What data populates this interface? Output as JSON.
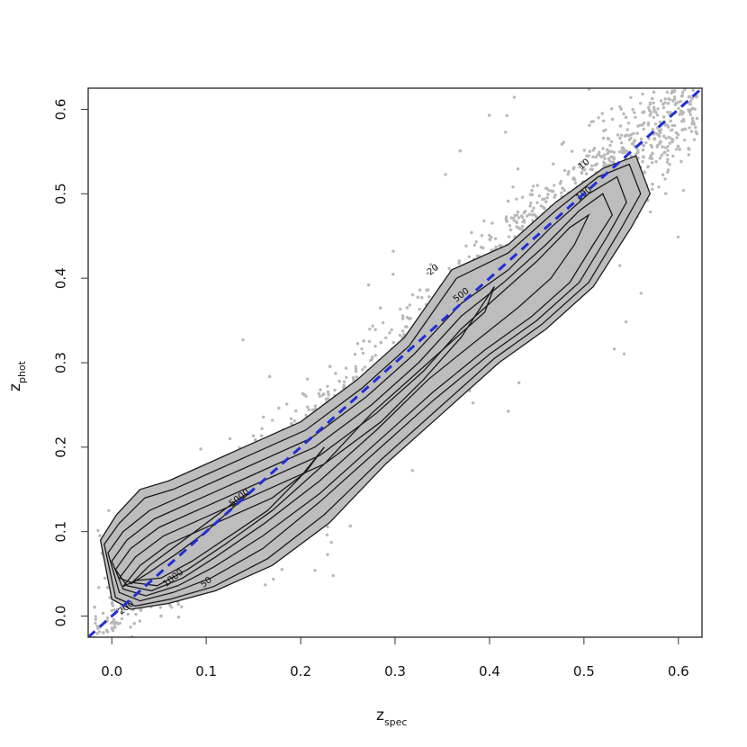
{
  "chart_data": {
    "type": "scatter",
    "title": "",
    "xlabel": {
      "main": "z",
      "sub": "spec"
    },
    "ylabel": {
      "main": "z",
      "sub": "phot"
    },
    "xlim": [
      -0.025,
      0.625
    ],
    "ylim": [
      -0.025,
      0.625
    ],
    "x_ticks": [
      "0.0",
      "0.1",
      "0.2",
      "0.3",
      "0.4",
      "0.5",
      "0.6"
    ],
    "y_ticks": [
      "0.0",
      "0.1",
      "0.2",
      "0.3",
      "0.4",
      "0.5",
      "0.6"
    ],
    "grid": false,
    "legend": "none",
    "reference_line": {
      "label": "",
      "slope": 1,
      "intercept": 0,
      "style": "dashed",
      "color": "#1f2fd6"
    },
    "colors": {
      "points": "#b9b9b9",
      "density_fill": "#bdbdbd",
      "contour": "#1a1a1a",
      "reference": "#1f2fd6"
    },
    "density_contours": [
      {
        "level": "10",
        "x": [
          -0.012,
          0.005,
          0.03,
          0.06,
          0.1,
          0.14,
          0.2,
          0.26,
          0.31,
          0.36,
          0.42,
          0.47,
          0.52,
          0.555,
          0.57,
          0.55,
          0.51,
          0.46,
          0.41,
          0.35,
          0.29,
          0.23,
          0.17,
          0.11,
          0.06,
          0.02,
          0.0,
          -0.012
        ],
        "y": [
          0.09,
          0.12,
          0.15,
          0.16,
          0.18,
          0.2,
          0.23,
          0.28,
          0.33,
          0.41,
          0.44,
          0.49,
          0.53,
          0.545,
          0.5,
          0.46,
          0.39,
          0.34,
          0.3,
          0.24,
          0.18,
          0.11,
          0.06,
          0.03,
          0.015,
          0.008,
          0.02,
          0.09
        ]
      },
      {
        "level": "20",
        "x": [
          -0.008,
          0.008,
          0.035,
          0.065,
          0.105,
          0.145,
          0.205,
          0.265,
          0.315,
          0.365,
          0.42,
          0.47,
          0.515,
          0.548,
          0.56,
          0.54,
          0.505,
          0.455,
          0.405,
          0.345,
          0.285,
          0.225,
          0.165,
          0.108,
          0.062,
          0.025,
          0.004,
          -0.008
        ],
        "y": [
          0.085,
          0.11,
          0.14,
          0.15,
          0.17,
          0.19,
          0.22,
          0.27,
          0.32,
          0.4,
          0.43,
          0.48,
          0.52,
          0.535,
          0.5,
          0.46,
          0.395,
          0.345,
          0.305,
          0.245,
          0.185,
          0.12,
          0.068,
          0.035,
          0.02,
          0.012,
          0.022,
          0.085
        ]
      },
      {
        "level": "50",
        "x": [
          -0.004,
          0.012,
          0.04,
          0.07,
          0.11,
          0.15,
          0.21,
          0.27,
          0.32,
          0.37,
          0.42,
          0.465,
          0.505,
          0.535,
          0.545,
          0.525,
          0.495,
          0.45,
          0.4,
          0.34,
          0.28,
          0.22,
          0.16,
          0.105,
          0.065,
          0.03,
          0.008,
          -0.004
        ],
        "y": [
          0.075,
          0.1,
          0.125,
          0.14,
          0.16,
          0.18,
          0.21,
          0.26,
          0.31,
          0.37,
          0.41,
          0.46,
          0.5,
          0.52,
          0.49,
          0.45,
          0.395,
          0.35,
          0.31,
          0.255,
          0.195,
          0.135,
          0.08,
          0.045,
          0.028,
          0.018,
          0.028,
          0.075
        ]
      },
      {
        "level": "100",
        "x": [
          0.0,
          0.016,
          0.045,
          0.075,
          0.115,
          0.155,
          0.215,
          0.275,
          0.325,
          0.37,
          0.415,
          0.46,
          0.495,
          0.52,
          0.53,
          0.51,
          0.485,
          0.445,
          0.395,
          0.34,
          0.28,
          0.22,
          0.16,
          0.108,
          0.07,
          0.036,
          0.012,
          0.0
        ],
        "y": [
          0.065,
          0.09,
          0.115,
          0.13,
          0.15,
          0.17,
          0.2,
          0.25,
          0.3,
          0.355,
          0.395,
          0.44,
          0.48,
          0.5,
          0.475,
          0.44,
          0.395,
          0.355,
          0.315,
          0.265,
          0.205,
          0.145,
          0.095,
          0.058,
          0.036,
          0.024,
          0.032,
          0.065
        ]
      },
      {
        "level": "200",
        "x": [
          0.004,
          0.02,
          0.05,
          0.08,
          0.12,
          0.16,
          0.22,
          0.28,
          0.33,
          0.37,
          0.41,
          0.45,
          0.485,
          0.505,
          0.49,
          0.465,
          0.43,
          0.385,
          0.335,
          0.28,
          0.22,
          0.162,
          0.11,
          0.075,
          0.042,
          0.016,
          0.004
        ],
        "y": [
          0.055,
          0.08,
          0.105,
          0.12,
          0.14,
          0.16,
          0.19,
          0.24,
          0.29,
          0.34,
          0.38,
          0.42,
          0.46,
          0.475,
          0.44,
          0.4,
          0.365,
          0.325,
          0.28,
          0.22,
          0.16,
          0.11,
          0.07,
          0.045,
          0.03,
          0.036,
          0.055
        ]
      },
      {
        "level": "500",
        "x": [
          0.008,
          0.025,
          0.055,
          0.085,
          0.125,
          0.165,
          0.225,
          0.285,
          0.33,
          0.37,
          0.405,
          0.395,
          0.36,
          0.32,
          0.275,
          0.225,
          0.17,
          0.12,
          0.08,
          0.048,
          0.02,
          0.008
        ],
        "y": [
          0.045,
          0.07,
          0.095,
          0.11,
          0.13,
          0.15,
          0.18,
          0.23,
          0.28,
          0.33,
          0.39,
          0.36,
          0.325,
          0.285,
          0.24,
          0.18,
          0.125,
          0.085,
          0.055,
          0.036,
          0.04,
          0.045
        ]
      },
      {
        "level": "1000",
        "x": [
          0.012,
          0.03,
          0.06,
          0.09,
          0.13,
          0.17,
          0.205,
          0.225,
          0.2,
          0.165,
          0.125,
          0.085,
          0.052,
          0.025,
          0.012
        ],
        "y": [
          0.035,
          0.06,
          0.085,
          0.1,
          0.12,
          0.14,
          0.17,
          0.2,
          0.165,
          0.125,
          0.095,
          0.065,
          0.045,
          0.042,
          0.035
        ]
      },
      {
        "level": "5000",
        "x": [
          0.02,
          0.04,
          0.07,
          0.1,
          0.13,
          0.15,
          0.13,
          0.1,
          0.07,
          0.04,
          0.02
        ],
        "y": [
          0.038,
          0.06,
          0.085,
          0.11,
          0.135,
          0.15,
          0.13,
          0.1,
          0.075,
          0.052,
          0.038
        ]
      }
    ],
    "contour_labels": [
      {
        "text": "10",
        "x": 0.5,
        "y": 0.535
      },
      {
        "text": "20",
        "x": 0.34,
        "y": 0.41
      },
      {
        "text": "100",
        "x": 0.5,
        "y": 0.5
      },
      {
        "text": "500",
        "x": 0.37,
        "y": 0.38
      },
      {
        "text": "5000",
        "x": 0.135,
        "y": 0.14
      },
      {
        "text": "1000",
        "x": 0.065,
        "y": 0.045
      },
      {
        "text": "50",
        "x": 0.1,
        "y": 0.04
      },
      {
        "text": "200",
        "x": 0.015,
        "y": 0.01
      }
    ],
    "scatter_points": {
      "n": 2600,
      "distribution": "density around z_phot = z_spec with outliers",
      "x_range": [
        -0.02,
        0.62
      ]
    }
  }
}
